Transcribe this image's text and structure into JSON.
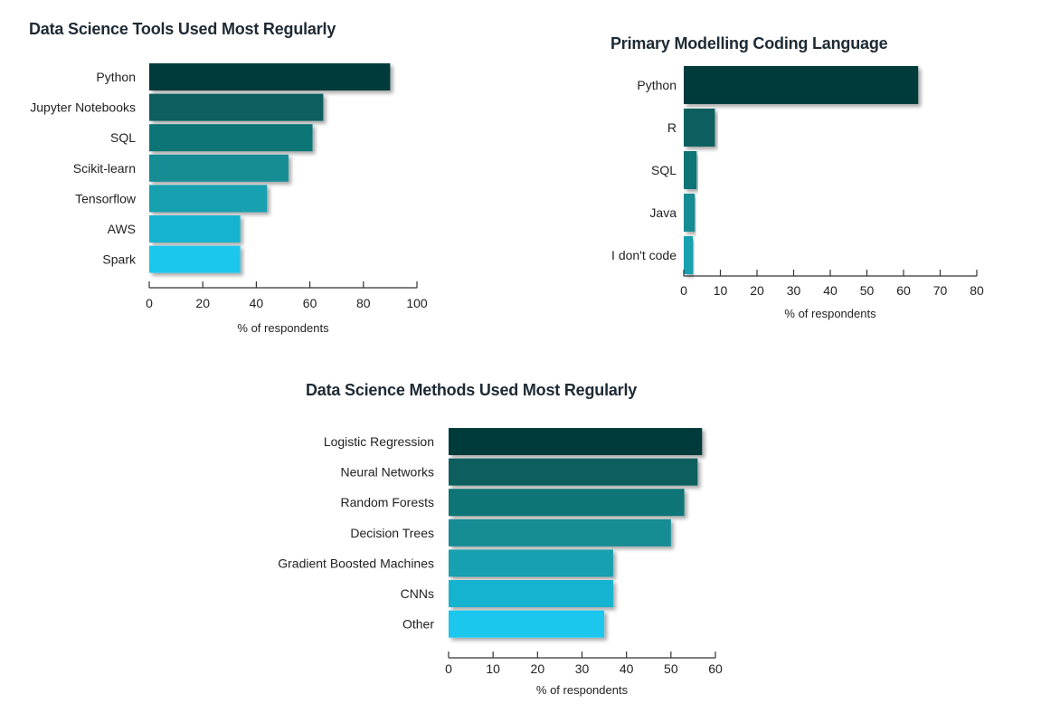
{
  "chart_data": [
    {
      "type": "bar",
      "orientation": "horizontal",
      "title": "Data Science Tools Used Most Regularly",
      "categories": [
        "Python",
        "Jupyter Notebooks",
        "SQL",
        "Scikit-learn",
        "Tensorflow",
        "AWS",
        "Spark"
      ],
      "values": [
        90,
        65,
        61,
        52,
        44,
        34,
        34
      ],
      "xlabel": "% of respondents",
      "xlim": [
        0,
        100
      ],
      "xticks": [
        "0",
        "20",
        "40",
        "60",
        "80",
        "100"
      ],
      "colors": [
        "#053b3b",
        "#0c5f5f",
        "#107575",
        "#138c94",
        "#15a0b0",
        "#14b3d1",
        "#1bc7ee"
      ]
    },
    {
      "type": "bar",
      "orientation": "horizontal",
      "title": "Primary Modelling Coding Language",
      "categories": [
        "Python",
        "R",
        "SQL",
        "Java",
        "I don't code"
      ],
      "values": [
        64,
        8.5,
        3.5,
        3,
        2.5
      ],
      "xlabel": "% of respondents",
      "xlim": [
        0,
        80
      ],
      "xticks": [
        "0",
        "10",
        "20",
        "30",
        "40",
        "50",
        "60",
        "70",
        "80"
      ],
      "colors": [
        "#053b3b",
        "#0c5f5f",
        "#107575",
        "#138c94",
        "#15a0b0"
      ]
    },
    {
      "type": "bar",
      "orientation": "horizontal",
      "title": "Data Science Methods Used Most Regularly",
      "categories": [
        "Logistic Regression",
        "Neural Networks",
        "Random Forests",
        "Decision Trees",
        "Gradient Boosted Machines",
        "CNNs",
        "Other"
      ],
      "values": [
        57,
        56,
        53,
        50,
        37,
        37,
        35
      ],
      "xlabel": "% of respondents",
      "xlim": [
        0,
        60
      ],
      "xticks": [
        "0",
        "10",
        "20",
        "30",
        "40",
        "50",
        "60"
      ],
      "colors": [
        "#053b3b",
        "#0c5f5f",
        "#107575",
        "#138c94",
        "#15a0b0",
        "#14b3d1",
        "#1bc7ee"
      ]
    }
  ]
}
